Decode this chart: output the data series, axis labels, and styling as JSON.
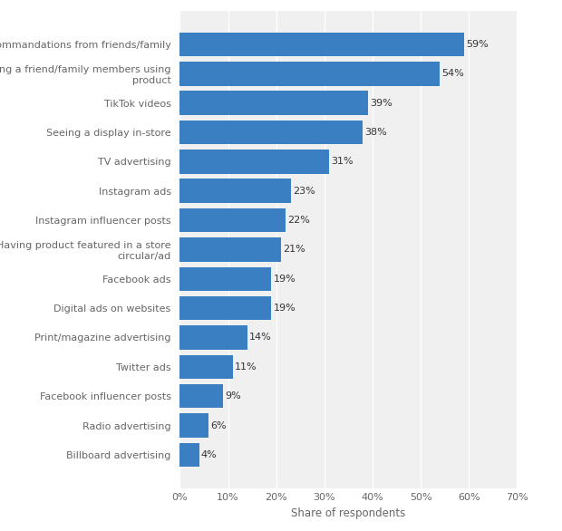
{
  "categories": [
    "Billboard advertising",
    "Radio advertising",
    "Facebook influencer posts",
    "Twitter ads",
    "Print/magazine advertising",
    "Digital ads on websites",
    "Facebook ads",
    "Having product featured in a store\ncircular/ad",
    "Instagram influencer posts",
    "Instagram ads",
    "TV advertising",
    "Seeing a display in-store",
    "TikTok videos",
    "Seeing a friend/family members using\nproduct",
    "Recommandations from friends/family"
  ],
  "values": [
    4,
    6,
    9,
    11,
    14,
    19,
    19,
    21,
    22,
    23,
    31,
    38,
    39,
    54,
    59
  ],
  "bar_color": "#3a7fc1",
  "plot_bg_color": "#f0f0f0",
  "fig_bg_color": "#ffffff",
  "xlabel": "Share of respondents",
  "xlim": [
    0,
    70
  ],
  "xticks": [
    0,
    10,
    20,
    30,
    40,
    50,
    60,
    70
  ],
  "grid_color": "#ffffff",
  "label_fontsize": 8.0,
  "value_fontsize": 8.0,
  "xlabel_fontsize": 8.5,
  "tick_label_color": "#666666",
  "bar_height": 0.82
}
